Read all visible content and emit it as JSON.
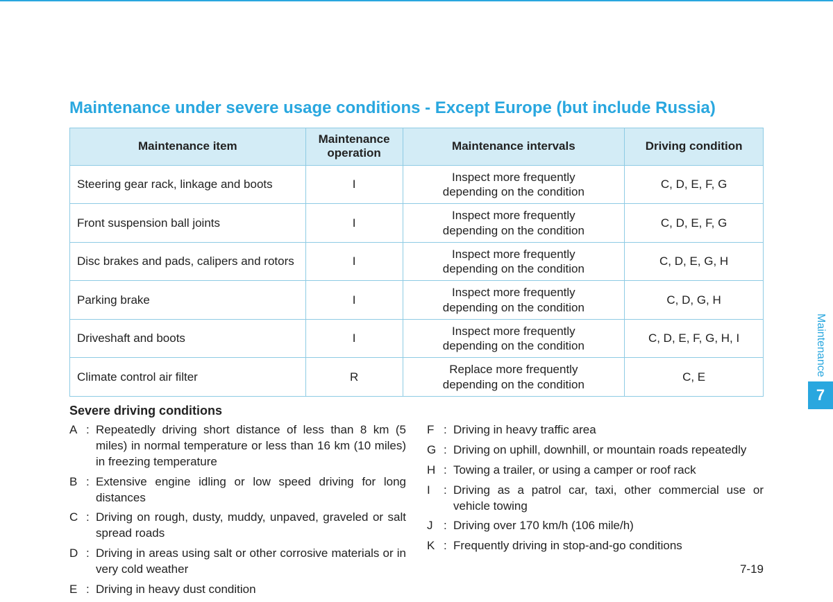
{
  "title": "Maintenance under severe usage conditions - Except Europe (but include Russia)",
  "table": {
    "headers": {
      "item": "Maintenance item",
      "operation": "Maintenance\noperation",
      "intervals": "Maintenance intervals",
      "condition": "Driving condition"
    },
    "rows": [
      {
        "item": "Steering gear rack, linkage and boots",
        "op": "I",
        "interval": "Inspect more frequently\ndepending on the condition",
        "cond": "C, D, E, F, G"
      },
      {
        "item": "Front suspension ball joints",
        "op": "I",
        "interval": "Inspect more frequently\ndepending on the condition",
        "cond": "C, D, E, F, G"
      },
      {
        "item": "Disc brakes and pads, calipers and rotors",
        "op": "I",
        "interval": "Inspect more frequently\ndepending on the condition",
        "cond": "C, D, E, G, H"
      },
      {
        "item": "Parking brake",
        "op": "I",
        "interval": "Inspect more frequently\ndepending on the condition",
        "cond": "C, D, G, H"
      },
      {
        "item": "Driveshaft and boots",
        "op": "I",
        "interval": "Inspect more frequently\ndepending on the condition",
        "cond": "C, D, E, F, G, H, I"
      },
      {
        "item": "Climate control air filter",
        "op": "R",
        "interval": "Replace more frequently\ndepending on the condition",
        "cond": "C, E"
      }
    ]
  },
  "conditions_heading": "Severe driving conditions",
  "conditions_left": [
    {
      "key": "A",
      "text": "Repeatedly driving short distance of less than 8 km (5 miles) in normal temperature or less than 16 km (10 miles) in freezing temperature"
    },
    {
      "key": "B",
      "text": "Extensive engine idling or low speed driving for long distances"
    },
    {
      "key": "C",
      "text": "Driving on rough, dusty, muddy, unpaved, graveled or salt spread roads"
    },
    {
      "key": "D",
      "text": "Driving in areas using salt or other corrosive materials or in very cold weather"
    },
    {
      "key": "E",
      "text": "Driving in heavy dust condition"
    }
  ],
  "conditions_right": [
    {
      "key": "F",
      "text": "Driving in heavy traffic area"
    },
    {
      "key": "G",
      "text": "Driving on uphill, downhill, or mountain roads repeatedly"
    },
    {
      "key": "H",
      "text": "Towing a trailer, or using a camper or roof rack"
    },
    {
      "key": "I",
      "text": "Driving as a patrol car, taxi, other commercial use or vehicle towing"
    },
    {
      "key": "J",
      "text": "Driving over 170 km/h (106 mile/h)"
    },
    {
      "key": "K",
      "text": "Frequently driving in stop-and-go conditions"
    }
  ],
  "side": {
    "label": "Maintenance",
    "chapter": "7"
  },
  "page_number": "7-19",
  "colon": ":"
}
